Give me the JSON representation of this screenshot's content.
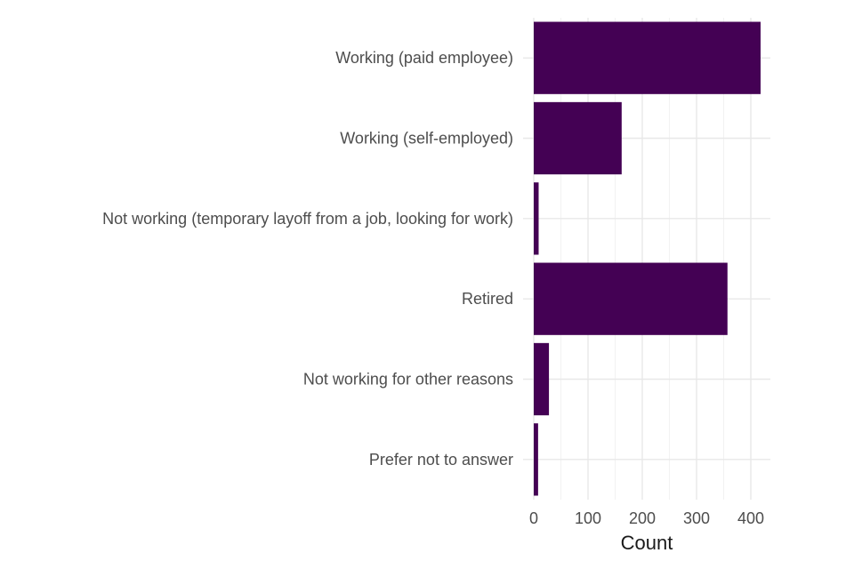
{
  "chart_data": {
    "type": "bar",
    "orientation": "horizontal",
    "categories": [
      "Working (paid employee)",
      "Working (self-employed)",
      "Not working (temporary layoff from a job, looking for work)",
      "Retired",
      "Not working for other reasons",
      "Prefer not to answer"
    ],
    "values": [
      418,
      162,
      9,
      357,
      28,
      8
    ],
    "xlabel": "Count",
    "ylabel": "",
    "title": "",
    "xlim": [
      0,
      440
    ],
    "x_ticks": [
      0,
      100,
      200,
      300,
      400
    ],
    "x_tick_labels": [
      "0",
      "100",
      "200",
      "300",
      "400"
    ],
    "bar_color": "#440154",
    "grid": true,
    "legend": "none"
  }
}
